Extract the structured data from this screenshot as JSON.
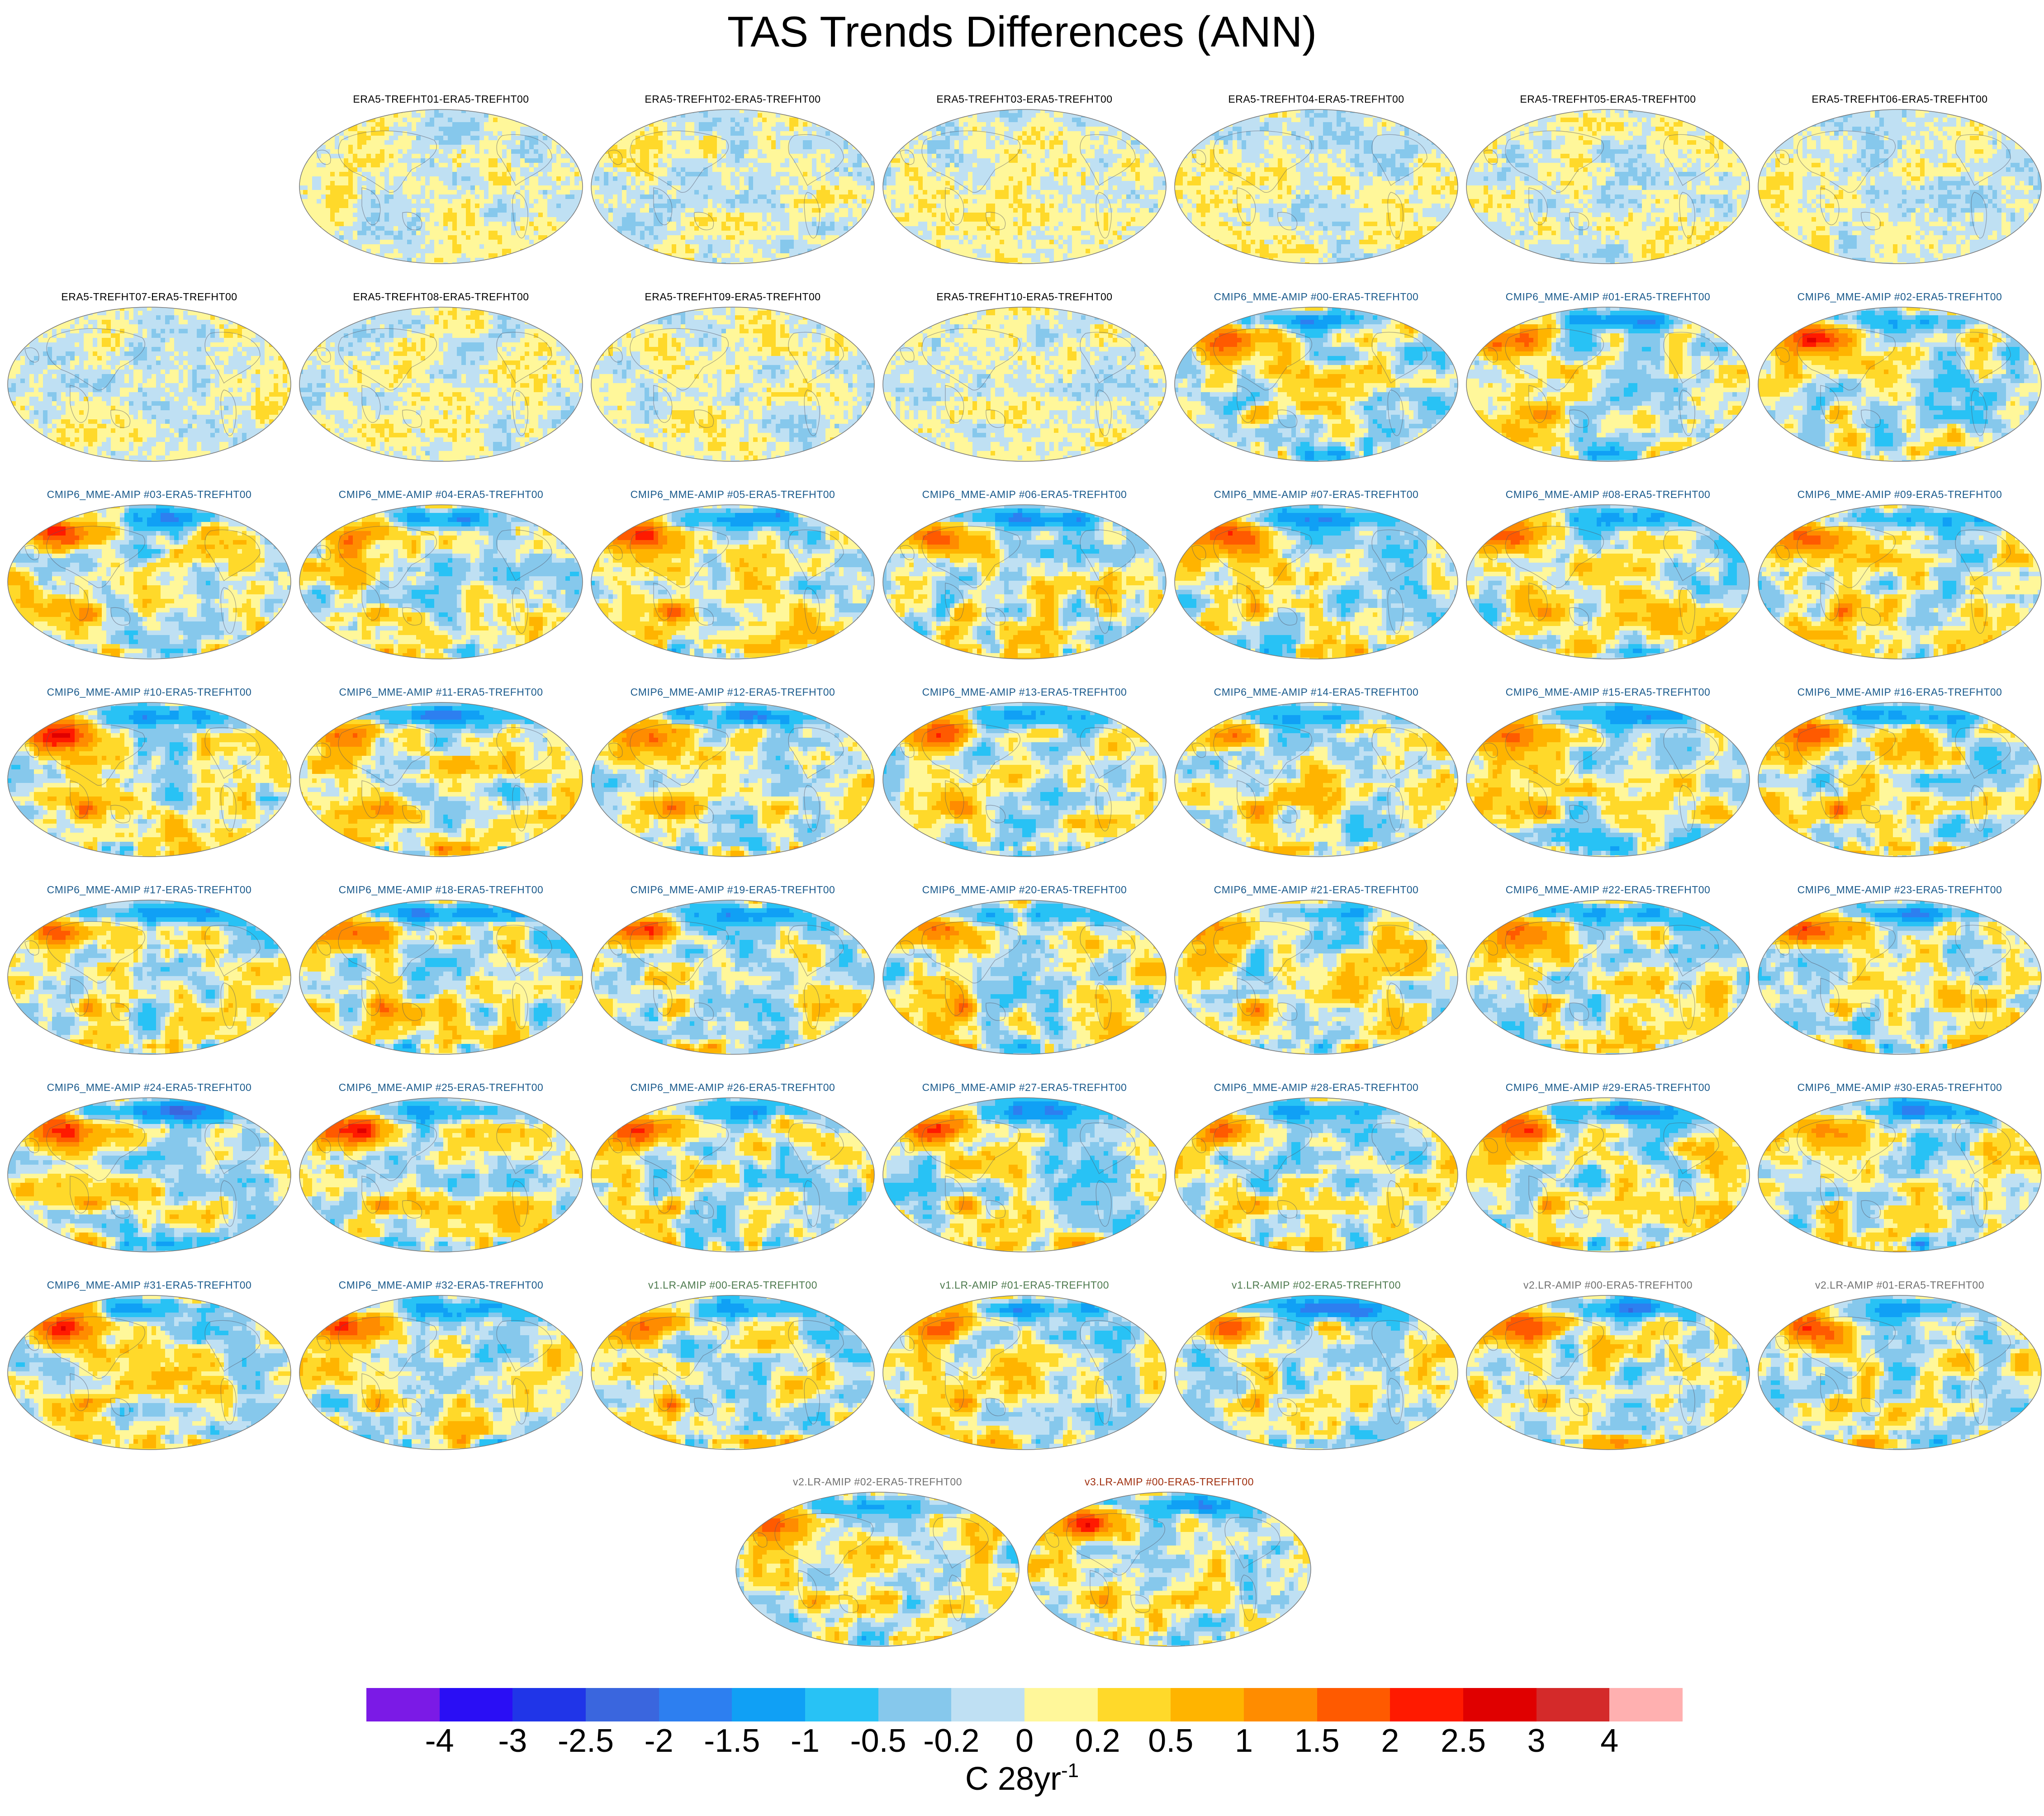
{
  "title": "TAS Trends Differences (ANN)",
  "chart_data": {
    "type": "heatmap",
    "title": "TAS Trends Differences (ANN)",
    "projection": "robinson-global-maps",
    "panel_titles": [
      "ERA5-TREFHT01-ERA5-TREFHT00",
      "ERA5-TREFHT02-ERA5-TREFHT00",
      "ERA5-TREFHT03-ERA5-TREFHT00",
      "ERA5-TREFHT04-ERA5-TREFHT00",
      "ERA5-TREFHT05-ERA5-TREFHT00",
      "ERA5-TREFHT06-ERA5-TREFHT00",
      "ERA5-TREFHT07-ERA5-TREFHT00",
      "ERA5-TREFHT08-ERA5-TREFHT00",
      "ERA5-TREFHT09-ERA5-TREFHT00",
      "ERA5-TREFHT10-ERA5-TREFHT00",
      "CMIP6_MME-AMIP  #00-ERA5-TREFHT00",
      "CMIP6_MME-AMIP  #01-ERA5-TREFHT00",
      "CMIP6_MME-AMIP  #02-ERA5-TREFHT00",
      "CMIP6_MME-AMIP  #03-ERA5-TREFHT00",
      "CMIP6_MME-AMIP  #04-ERA5-TREFHT00",
      "CMIP6_MME-AMIP  #05-ERA5-TREFHT00",
      "CMIP6_MME-AMIP  #06-ERA5-TREFHT00",
      "CMIP6_MME-AMIP  #07-ERA5-TREFHT00",
      "CMIP6_MME-AMIP  #08-ERA5-TREFHT00",
      "CMIP6_MME-AMIP  #09-ERA5-TREFHT00",
      "CMIP6_MME-AMIP  #10-ERA5-TREFHT00",
      "CMIP6_MME-AMIP  #11-ERA5-TREFHT00",
      "CMIP6_MME-AMIP  #12-ERA5-TREFHT00",
      "CMIP6_MME-AMIP  #13-ERA5-TREFHT00",
      "CMIP6_MME-AMIP  #14-ERA5-TREFHT00",
      "CMIP6_MME-AMIP  #15-ERA5-TREFHT00",
      "CMIP6_MME-AMIP  #16-ERA5-TREFHT00",
      "CMIP6_MME-AMIP  #17-ERA5-TREFHT00",
      "CMIP6_MME-AMIP  #18-ERA5-TREFHT00",
      "CMIP6_MME-AMIP  #19-ERA5-TREFHT00",
      "CMIP6_MME-AMIP  #20-ERA5-TREFHT00",
      "CMIP6_MME-AMIP  #21-ERA5-TREFHT00",
      "CMIP6_MME-AMIP  #22-ERA5-TREFHT00",
      "CMIP6_MME-AMIP  #23-ERA5-TREFHT00",
      "CMIP6_MME-AMIP  #24-ERA5-TREFHT00",
      "CMIP6_MME-AMIP  #25-ERA5-TREFHT00",
      "CMIP6_MME-AMIP  #26-ERA5-TREFHT00",
      "CMIP6_MME-AMIP  #27-ERA5-TREFHT00",
      "CMIP6_MME-AMIP  #28-ERA5-TREFHT00",
      "CMIP6_MME-AMIP  #29-ERA5-TREFHT00",
      "CMIP6_MME-AMIP  #30-ERA5-TREFHT00",
      "CMIP6_MME-AMIP  #31-ERA5-TREFHT00",
      "CMIP6_MME-AMIP  #32-ERA5-TREFHT00",
      "v1.LR-AMIP  #00-ERA5-TREFHT00",
      "v1.LR-AMIP  #01-ERA5-TREFHT00",
      "v1.LR-AMIP  #02-ERA5-TREFHT00",
      "v2.LR-AMIP  #00-ERA5-TREFHT00",
      "v2.LR-AMIP  #01-ERA5-TREFHT00",
      "v2.LR-AMIP  #02-ERA5-TREFHT00",
      "v3.LR-AMIP  #00-ERA5-TREFHT00"
    ],
    "colorbar": {
      "levels": [
        "-4",
        "-3",
        "-2.5",
        "-2",
        "-1.5",
        "-1",
        "-0.5",
        "-0.2",
        "0",
        "0.2",
        "0.5",
        "1",
        "1.5",
        "2",
        "2.5",
        "3",
        "4"
      ],
      "colors": [
        "#7b1ae6",
        "#2a0ef5",
        "#2035e8",
        "#3a66de",
        "#2d7ff0",
        "#10a0f5",
        "#28c2f5",
        "#86c8ec",
        "#bfe0f3",
        "#fff79a",
        "#ffd92a",
        "#ffb400",
        "#ff8c00",
        "#ff5a00",
        "#ff1a00",
        "#e00000",
        "#d42a2a",
        "#ffb0b0"
      ],
      "units": "C 28yr",
      "units_exponent": "-1"
    },
    "label_colors": {
      "ERA5": "#000000",
      "CMIP6": "#1a5a8c",
      "v1": "#4e7a4e",
      "v2": "#707070",
      "v3": "#a03010"
    }
  }
}
